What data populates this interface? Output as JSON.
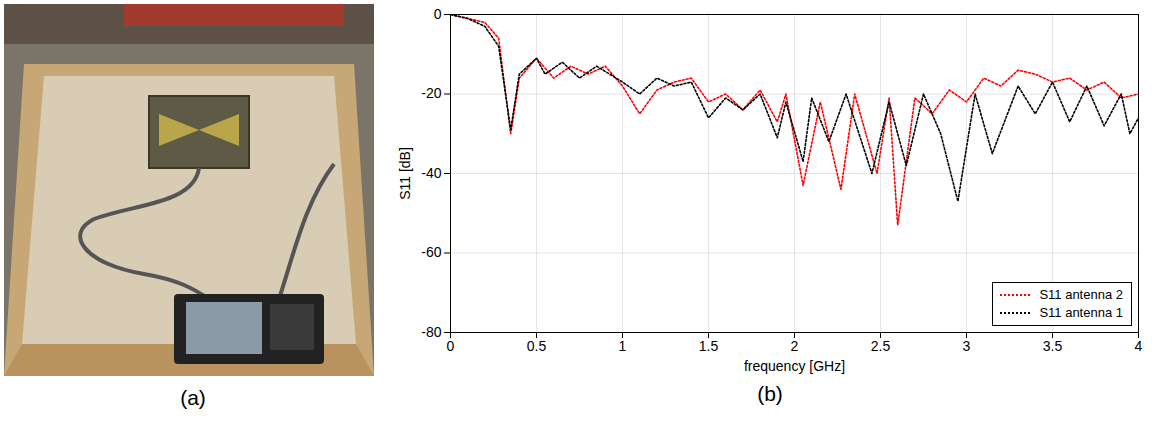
{
  "photo": {
    "caption": "(a)"
  },
  "chart_data": {
    "type": "line",
    "caption": "(b)",
    "x_label": "frequency [GHz]",
    "y_label": "S11 [dB]",
    "xlim": [
      0,
      4
    ],
    "xticks": [
      0,
      0.5,
      1,
      1.5,
      2,
      2.5,
      3,
      3.5,
      4
    ],
    "ylim": [
      -80,
      0
    ],
    "yticks": [
      -80,
      -60,
      -40,
      -20,
      0
    ],
    "grid": true,
    "legend": "lower right",
    "line_style": "dotted",
    "series": [
      {
        "name": "S11 antenna 2",
        "color": "#ff0000",
        "x": [
          0,
          0.1,
          0.2,
          0.28,
          0.35,
          0.4,
          0.5,
          0.6,
          0.7,
          0.8,
          0.9,
          1.0,
          1.1,
          1.2,
          1.3,
          1.4,
          1.5,
          1.6,
          1.7,
          1.8,
          1.9,
          1.95,
          2.05,
          2.15,
          2.27,
          2.35,
          2.48,
          2.55,
          2.6,
          2.7,
          2.8,
          2.9,
          3.0,
          3.1,
          3.2,
          3.3,
          3.4,
          3.5,
          3.6,
          3.7,
          3.8,
          3.9,
          4.0
        ],
        "values": [
          0,
          -1,
          -2,
          -6,
          -30,
          -16,
          -11,
          -16,
          -13,
          -15,
          -13,
          -18,
          -25,
          -19,
          -17,
          -16,
          -22,
          -20,
          -24,
          -19,
          -27,
          -20,
          -43,
          -22,
          -44,
          -20,
          -40,
          -21,
          -53,
          -21,
          -25,
          -19,
          -22,
          -16,
          -18,
          -14,
          -15,
          -17,
          -16,
          -19,
          -17,
          -21,
          -20
        ]
      },
      {
        "name": "S11 antenna 1",
        "color": "#000000",
        "x": [
          0,
          0.1,
          0.2,
          0.28,
          0.35,
          0.4,
          0.5,
          0.55,
          0.65,
          0.75,
          0.85,
          1.0,
          1.1,
          1.2,
          1.3,
          1.4,
          1.5,
          1.6,
          1.7,
          1.8,
          1.9,
          1.95,
          2.05,
          2.1,
          2.2,
          2.3,
          2.45,
          2.55,
          2.65,
          2.75,
          2.85,
          2.95,
          3.05,
          3.15,
          3.3,
          3.4,
          3.5,
          3.6,
          3.7,
          3.8,
          3.9,
          3.95,
          4.0
        ],
        "values": [
          0,
          -1,
          -3,
          -8,
          -29,
          -15,
          -11,
          -15,
          -12,
          -16,
          -13,
          -17,
          -20,
          -16,
          -18,
          -17,
          -26,
          -21,
          -24,
          -20,
          -31,
          -22,
          -37,
          -21,
          -32,
          -20,
          -40,
          -22,
          -38,
          -20,
          -30,
          -47,
          -20,
          -35,
          -18,
          -25,
          -17,
          -27,
          -18,
          -28,
          -20,
          -30,
          -26
        ]
      }
    ]
  }
}
